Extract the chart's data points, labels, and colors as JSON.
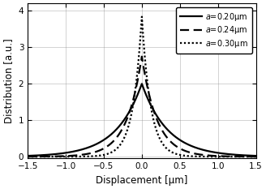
{
  "xlabel": "Displacement [μm]",
  "ylabel": "Distribution [a.u.]",
  "xlim": [
    -1.5,
    1.5
  ],
  "ylim": [
    -0.05,
    4.2
  ],
  "xticks": [
    -1.5,
    -1.0,
    -0.5,
    0.0,
    0.5,
    1.0,
    1.5
  ],
  "yticks": [
    0,
    1,
    2,
    3,
    4
  ],
  "curves": [
    {
      "label": "a=0.20μm",
      "linestyle": "solid",
      "b": 0.34,
      "peak": 2.0,
      "lw": 1.6
    },
    {
      "label": "a=0.24μm",
      "linestyle": "dashed",
      "b": 0.2,
      "peak": 2.75,
      "lw": 1.6
    },
    {
      "label": "a=0.30μm",
      "linestyle": "dotted",
      "b": 0.115,
      "peak": 3.85,
      "lw": 1.6
    }
  ],
  "legend_fontsize": 7.0,
  "axis_fontsize": 8.5,
  "tick_fontsize": 7.5,
  "color": "black",
  "background_color": "white",
  "grid": true,
  "figsize": [
    3.28,
    2.33
  ],
  "dpi": 100
}
